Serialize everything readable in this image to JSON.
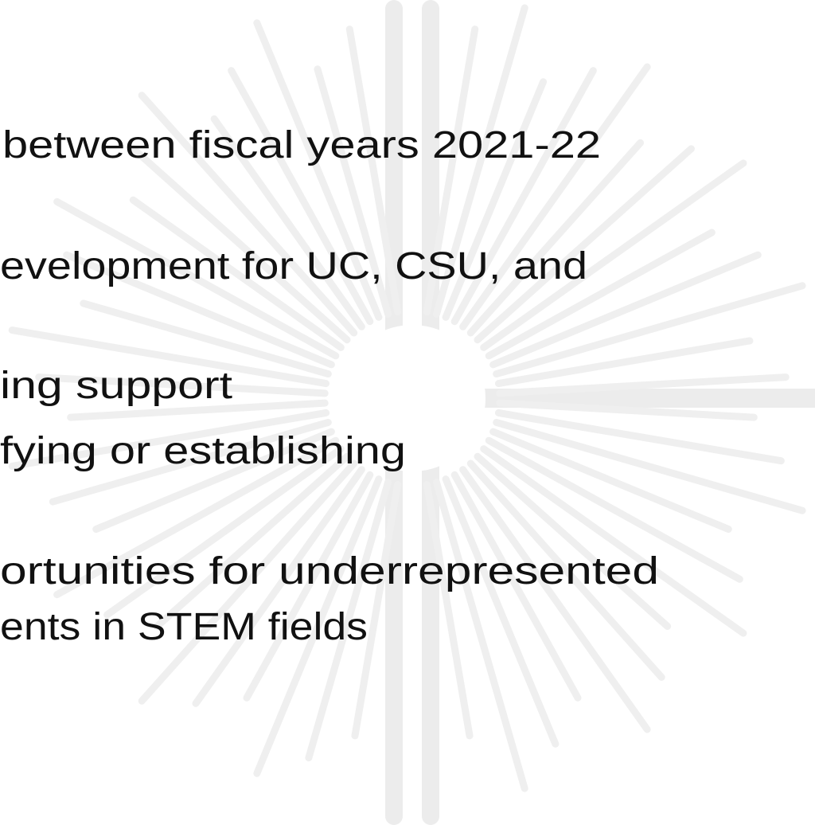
{
  "lines": [
    "between fiscal years 2021-22",
    "evelopment for UC, CSU, and",
    "ing support",
    "fying or establishing",
    "ortunities for underrepresented",
    "ents in STEM fields"
  ]
}
